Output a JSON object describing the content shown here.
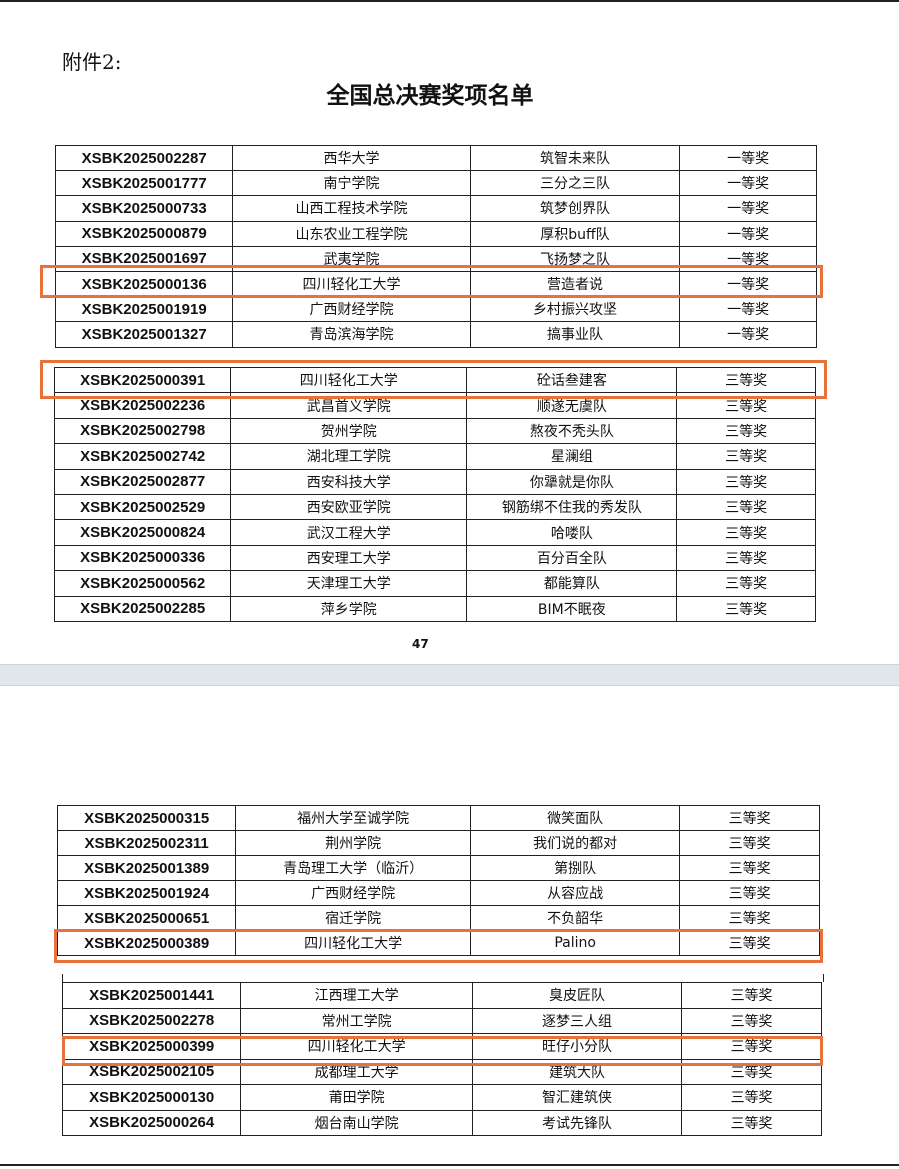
{
  "header": {
    "attachment": "附件2:",
    "title": "全国总决赛奖项名单"
  },
  "page_number": "47",
  "highlight_color": "#e8733a",
  "tables": [
    {
      "rows": [
        [
          "XSBK2025002287",
          "西华大学",
          "筑智未来队",
          "一等奖"
        ],
        [
          "XSBK2025001777",
          "南宁学院",
          "三分之三队",
          "一等奖"
        ],
        [
          "XSBK2025000733",
          "山西工程技术学院",
          "筑梦创界队",
          "一等奖"
        ],
        [
          "XSBK2025000879",
          "山东农业工程学院",
          "厚积buff队",
          "一等奖"
        ],
        [
          "XSBK2025001697",
          "武夷学院",
          "飞扬梦之队",
          "一等奖"
        ],
        [
          "XSBK2025000136",
          "四川轻化工大学",
          "营造者说",
          "一等奖"
        ],
        [
          "XSBK2025001919",
          "广西财经学院",
          "乡村振兴攻坚",
          "一等奖"
        ],
        [
          "XSBK2025001327",
          "青岛滨海学院",
          "搞事业队",
          "一等奖"
        ]
      ]
    },
    {
      "rows": [
        [
          "XSBK2025000391",
          "四川轻化工大学",
          "砼话叁建客",
          "三等奖"
        ],
        [
          "XSBK2025002236",
          "武昌首义学院",
          "顺遂无虞队",
          "三等奖"
        ],
        [
          "XSBK2025002798",
          "贺州学院",
          "熬夜不秃头队",
          "三等奖"
        ],
        [
          "XSBK2025002742",
          "湖北理工学院",
          "星澜组",
          "三等奖"
        ],
        [
          "XSBK2025002877",
          "西安科技大学",
          "你犟就是你队",
          "三等奖"
        ],
        [
          "XSBK2025002529",
          "西安欧亚学院",
          "钢筋绑不住我的秀发队",
          "三等奖"
        ],
        [
          "XSBK2025000824",
          "武汉工程大学",
          "哈喽队",
          "三等奖"
        ],
        [
          "XSBK2025000336",
          "西安理工大学",
          "百分百全队",
          "三等奖"
        ],
        [
          "XSBK2025000562",
          "天津理工大学",
          "都能算队",
          "三等奖"
        ],
        [
          "XSBK2025002285",
          "萍乡学院",
          "BIM不眠夜",
          "三等奖"
        ]
      ]
    },
    {
      "rows": [
        [
          "XSBK2025000315",
          "福州大学至诚学院",
          "微笑面队",
          "三等奖"
        ],
        [
          "XSBK2025002311",
          "荆州学院",
          "我们说的都对",
          "三等奖"
        ],
        [
          "XSBK2025001389",
          "青岛理工大学（临沂）",
          "第捌队",
          "三等奖"
        ],
        [
          "XSBK2025001924",
          "广西财经学院",
          "从容应战",
          "三等奖"
        ],
        [
          "XSBK2025000651",
          "宿迁学院",
          "不负韶华",
          "三等奖"
        ],
        [
          "XSBK2025000389",
          "四川轻化工大学",
          "Palino",
          "三等奖"
        ]
      ]
    },
    {
      "rows": [
        [
          "XSBK2025001441",
          "江西理工大学",
          "臭皮匠队",
          "三等奖"
        ],
        [
          "XSBK2025002278",
          "常州工学院",
          "逐梦三人组",
          "三等奖"
        ],
        [
          "XSBK2025000399",
          "四川轻化工大学",
          "旺仔小分队",
          "三等奖"
        ],
        [
          "XSBK2025002105",
          "成都理工大学",
          "建筑大队",
          "三等奖"
        ],
        [
          "XSBK2025000130",
          "莆田学院",
          "智汇建筑侠",
          "三等奖"
        ],
        [
          "XSBK2025000264",
          "烟台南山学院",
          "考试先锋队",
          "三等奖"
        ]
      ]
    }
  ]
}
